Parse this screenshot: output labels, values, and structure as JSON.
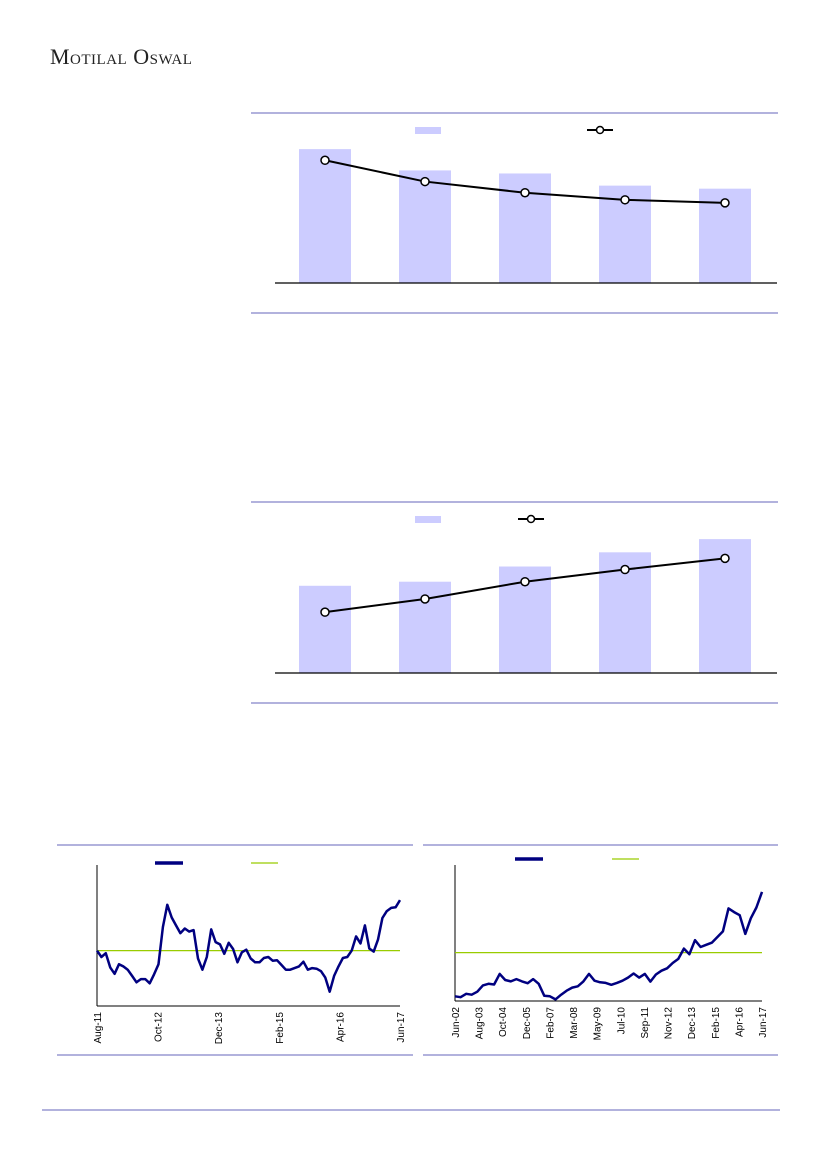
{
  "header": {
    "logo_text": "Motilal Oswal"
  },
  "colors": {
    "bar": "#ccccff",
    "line": "#000000",
    "series": "#000080",
    "reference": "#99cc00",
    "rule": "#6666bb"
  },
  "chart_data": [
    {
      "type": "bar",
      "note_values_relative": true,
      "categories": [
        "",
        "",
        "",
        "",
        ""
      ],
      "series": [
        {
          "kind": "bar",
          "values": [
            132,
            111,
            108,
            96,
            93
          ]
        },
        {
          "kind": "line",
          "marker": "circle-open",
          "values": [
            121,
            100,
            89,
            82,
            79
          ]
        }
      ],
      "ylim": [
        0,
        140
      ],
      "legend": "top-center",
      "grid": false
    },
    {
      "type": "bar",
      "note_values_relative": true,
      "categories": [
        "",
        "",
        "",
        "",
        ""
      ],
      "series": [
        {
          "kind": "bar",
          "values": [
            86,
            90,
            105,
            119,
            132
          ]
        },
        {
          "kind": "line",
          "marker": "circle-open",
          "values": [
            60,
            73,
            90,
            102,
            113
          ]
        }
      ],
      "ylim": [
        0,
        140
      ],
      "legend": "top-center",
      "grid": false
    },
    {
      "type": "line",
      "x_ticks": [
        "Aug-11",
        "Oct-12",
        "Dec-13",
        "Feb-15",
        "Apr-16",
        "Jun-17"
      ],
      "series": [
        {
          "values": [
            40.7,
            36,
            38.8,
            28.4,
            23.7,
            30.7,
            29.1,
            26.7,
            22.1,
            17.4,
            19.8,
            19.8,
            16.7,
            23.3,
            30.7,
            58.1,
            74.4,
            65.1,
            59.3,
            53.5,
            57,
            54.7,
            55.8,
            34.9,
            26.7,
            36,
            56.3,
            47,
            45.3,
            38.4,
            46.5,
            41.9,
            32.1,
            39.5,
            41.4,
            34.9,
            32.1,
            32.1,
            35.3,
            36,
            33.3,
            33.7,
            30.2,
            26.7,
            26.7,
            27.9,
            29.1,
            32.6,
            26.7,
            27.9,
            27.4,
            25.6,
            20.9,
            10.5,
            22.1,
            29.1,
            35.3,
            36,
            40.7,
            51.2,
            46,
            59.3,
            42.3,
            40,
            48.8,
            64.7,
            69.8,
            72.1,
            72.6,
            77.9
          ]
        }
      ],
      "reference_line": 40.7,
      "ylim": [
        0,
        100
      ],
      "legend": "top-center",
      "grid": false
    },
    {
      "type": "line",
      "x_ticks": [
        "Jun-02",
        "Aug-03",
        "Oct-04",
        "Dec-05",
        "Feb-07",
        "Mar-08",
        "May-09",
        "Jul-10",
        "Sep-11",
        "Nov-12",
        "Dec-13",
        "Feb-15",
        "Apr-16",
        "Jun-17"
      ],
      "series": [
        {
          "values": [
            3.6,
            2.9,
            5.5,
            4.8,
            7.1,
            11.9,
            13.1,
            12.6,
            20.7,
            16,
            15,
            16.7,
            15,
            13.6,
            16.7,
            13.1,
            4,
            3.6,
            1.2,
            4.8,
            7.9,
            10.2,
            11.2,
            15,
            20.7,
            15.5,
            14.3,
            13.8,
            12.4,
            13.8,
            15.5,
            17.9,
            21,
            17.9,
            20.7,
            14.8,
            20.2,
            23.1,
            25,
            29,
            32.1,
            40,
            35.7,
            46.4,
            41.2,
            42.9,
            44.5,
            48.8,
            53.1,
            70.7,
            67.9,
            65.5,
            51.2,
            63.1,
            71.4,
            83.3
          ]
        }
      ],
      "reference_line": 36.9,
      "ylim": [
        0,
        100
      ],
      "legend": "top-center",
      "grid": false
    }
  ]
}
